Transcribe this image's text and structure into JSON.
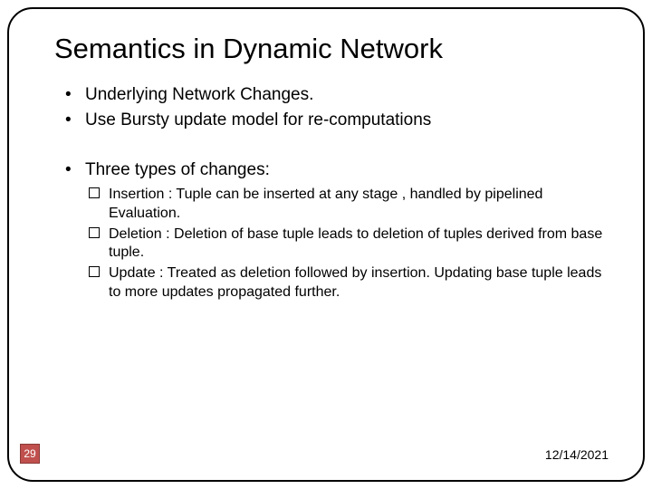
{
  "slide": {
    "title": "Semantics in Dynamic Network",
    "title_fontsize": 31,
    "title_color": "#000000",
    "bullets": [
      {
        "text": "Underlying Network Changes."
      },
      {
        "text": "Use Bursty update model for re-computations"
      }
    ],
    "bullet_fontsize": 19,
    "bullet2_label": "Three types of changes:",
    "sub_bullets": [
      {
        "text": "Insertion : Tuple can be inserted at any stage , handled by pipelined Evaluation."
      },
      {
        "text": "Deletion : Deletion of base tuple leads to deletion of tuples derived from base tuple."
      },
      {
        "text": "Update : Treated as deletion followed by insertion. Updating base tuple leads to more updates propagated further."
      }
    ],
    "sub_bullet_fontsize": 16,
    "border": {
      "color": "#000000",
      "radius": 28,
      "width": 2
    },
    "page_number": {
      "value": "29",
      "bg_color": "#c0504d",
      "border_color": "#8a3a38",
      "text_color": "#ffffff",
      "fontsize": 12
    },
    "date": {
      "value": "12/14/2021",
      "fontsize": 14,
      "color": "#000000"
    },
    "background_color": "#ffffff"
  }
}
